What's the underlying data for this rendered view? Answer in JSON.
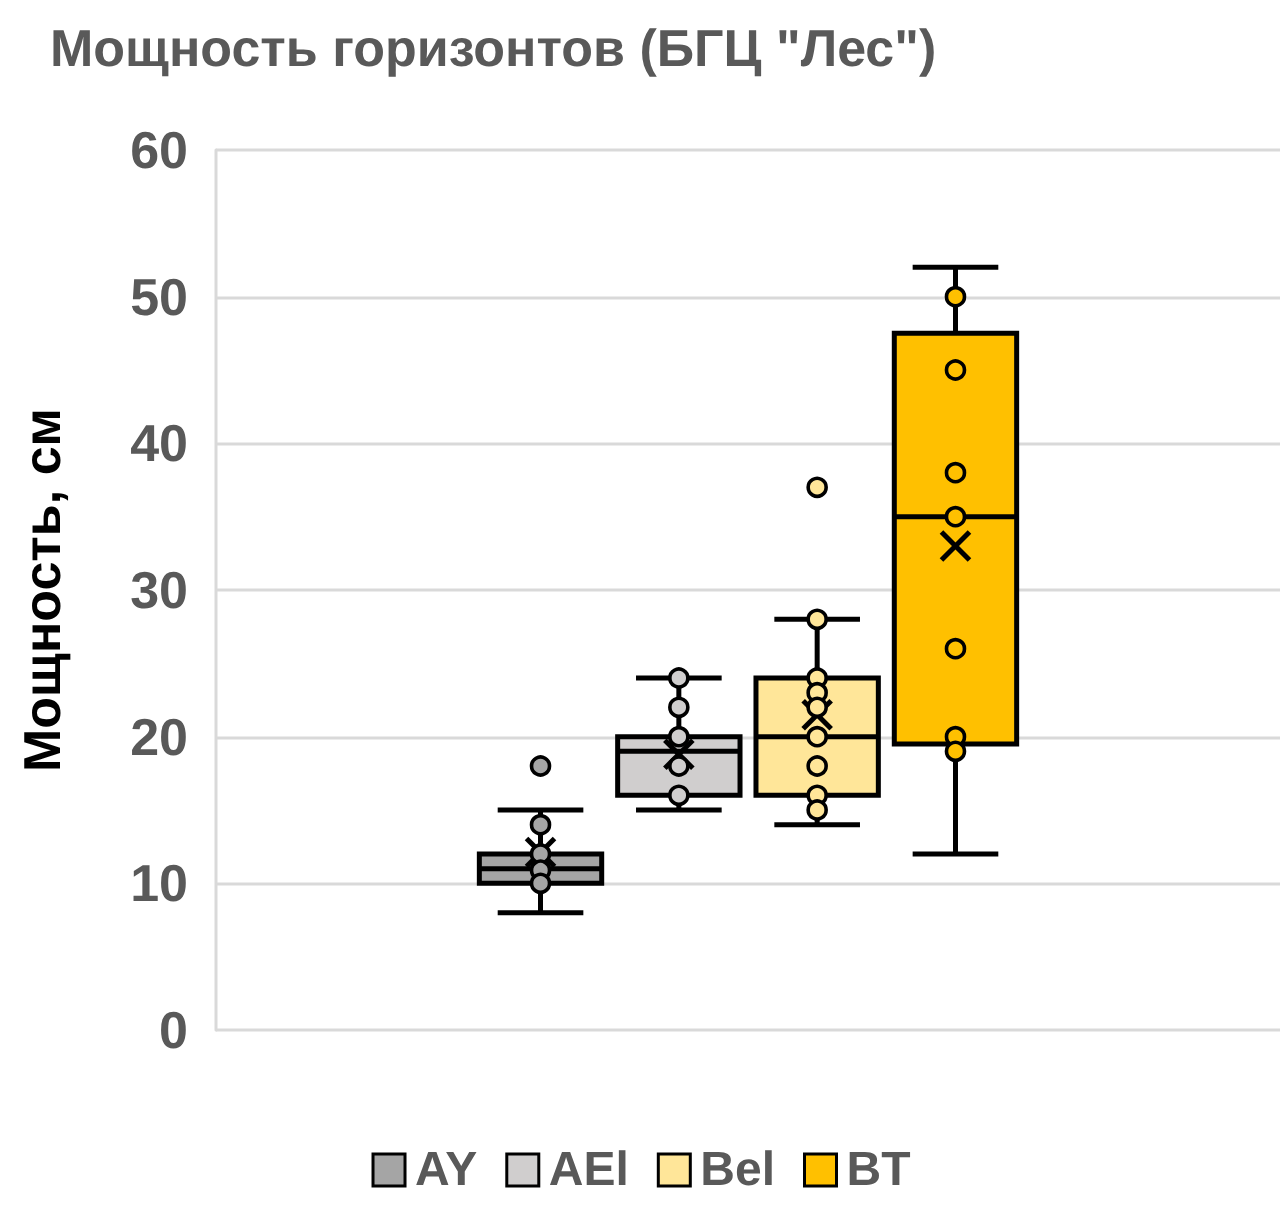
{
  "chart_data": {
    "type": "box",
    "title": "Мощность горизонтов (БГЦ \"Лес\")",
    "ylabel": "Мощность, см",
    "categories": [
      null
    ],
    "series": [
      {
        "name": "AY",
        "color": "#a5a5a5",
        "boxes": [
          {
            "low": 8,
            "q1": 10,
            "median": 11,
            "q3": 12,
            "high": 15,
            "mean": 12.1,
            "outliers": [
              18
            ]
          }
        ]
      },
      {
        "type": "scatter",
        "color": "#a5a5a5",
        "x": [
          null,
          null,
          null,
          null
        ],
        "values": [
          14,
          12,
          10.9,
          10
        ]
      },
      {
        "name": "AEl",
        "color": "#d0cece",
        "boxes": [
          {
            "low": 15,
            "q1": 16,
            "median": 19,
            "q3": 20,
            "high": 24,
            "mean": 18.8
          }
        ]
      },
      {
        "type": "scatter",
        "color": "#d0cece",
        "x": [
          null,
          null,
          null,
          null,
          null
        ],
        "values": [
          24,
          22,
          20,
          18,
          16
        ]
      },
      {
        "name": "Bel",
        "color": "#ffe699",
        "boxes": [
          {
            "low": 14,
            "q1": 16,
            "median": 20,
            "q3": 24,
            "high": 28,
            "mean": 21.5,
            "outliers": [
              37
            ]
          }
        ]
      },
      {
        "type": "scatter",
        "color": "#ffe699",
        "x": [
          null,
          null,
          null,
          null,
          null,
          null,
          null,
          null
        ],
        "values": [
          28,
          24,
          23,
          22,
          20,
          18,
          16,
          15
        ]
      },
      {
        "name": "BT",
        "color": "#ffc000",
        "boxes": [
          {
            "low": 12,
            "q1": 19.5,
            "median": 35,
            "q3": 47.5,
            "high": 52,
            "mean": 33
          }
        ]
      },
      {
        "type": "scatter",
        "color": "#ffc000",
        "x": [
          null,
          null,
          null,
          null,
          null,
          null,
          null
        ],
        "values": [
          50,
          45,
          38,
          35,
          26,
          20,
          19
        ]
      }
    ],
    "ylim": [
      0,
      60
    ],
    "yticks": [
      0,
      10,
      20,
      30,
      40,
      50,
      60
    ],
    "grid": "y",
    "legend": "bottom",
    "marker": "circle"
  }
}
